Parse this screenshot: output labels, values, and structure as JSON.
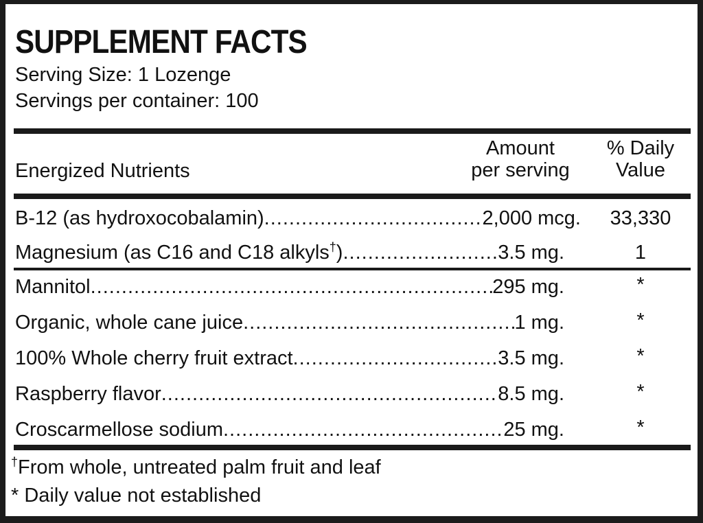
{
  "title": "SUPPLEMENT FACTS",
  "serving_size": "Serving Size: 1 Lozenge",
  "servings_per_container": "Servings per container: 100",
  "header": {
    "nutrients": "Energized Nutrients",
    "amount_line1": "Amount",
    "amount_line2": "per serving",
    "dv_line1": "% Daily",
    "dv_line2": "Value"
  },
  "rows": [
    {
      "name": "B-12 (as hydroxocobalamin) ",
      "amount": "2,000 mcg.",
      "dv": "33,330"
    },
    {
      "name": "Magnesium (as C16 and C18 alkyls",
      "mark": "†",
      "name_end": ") ",
      "amount": "3.5 mg.",
      "dv": "1"
    },
    {
      "name": "Mannitol ",
      "amount": "295 mg.",
      "dv": "*"
    },
    {
      "name": "Organic, whole cane juice",
      "amount": "1 mg.",
      "dv": "*"
    },
    {
      "name": "100% Whole cherry fruit extract",
      "amount": "3.5 mg.",
      "dv": "*"
    },
    {
      "name": "Raspberry flavor ",
      "amount": "8.5 mg.",
      "dv": "*"
    },
    {
      "name": "Croscarmellose sodium",
      "amount": "25 mg.",
      "dv": "*"
    }
  ],
  "footnotes": {
    "dagger_mark": "†",
    "dagger_text": "From whole, untreated palm fruit and leaf",
    "asterisk": "* Daily value not established"
  }
}
